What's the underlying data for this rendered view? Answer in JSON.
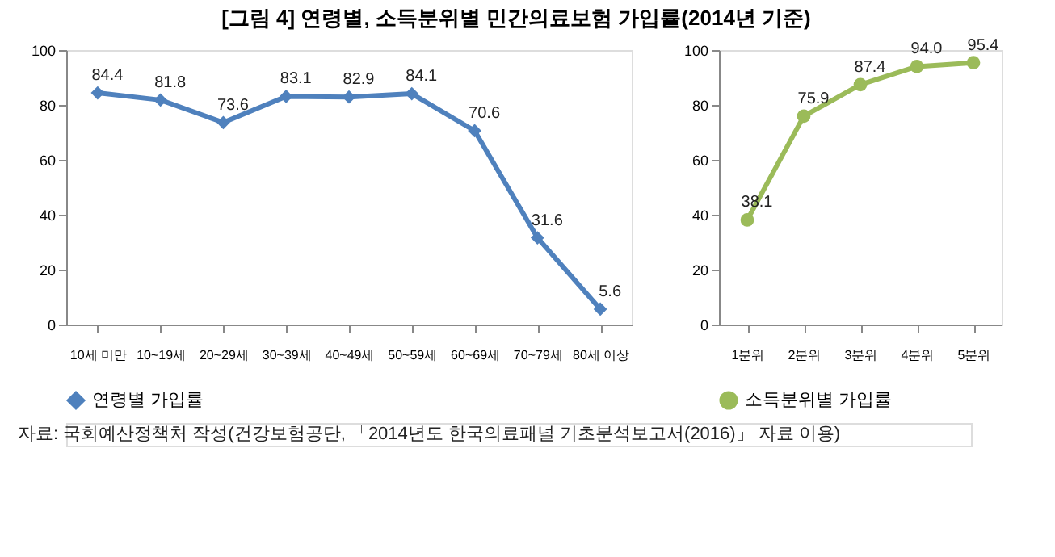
{
  "chart_data": [
    {
      "type": "line",
      "title": "[그림 4] 연령별, 소득분위별 민간의료보험 가입률(2014년 기준)",
      "annotations": [
        "자료: 국회예산정책처 작성(건강보험공단, 「2014년도 한국의료패널 기초분석보고서(2016)」 자료 이용)"
      ],
      "categories": [
        "10세 미만",
        "10~19세",
        "20~29세",
        "30~39세",
        "40~49세",
        "50~59세",
        "60~69세",
        "70~79세",
        "80세 이상"
      ],
      "series": [
        {
          "name": "연령별 가입률",
          "color": "#4f81bd",
          "values": [
            84.4,
            81.8,
            73.6,
            83.1,
            82.9,
            84.1,
            70.6,
            31.6,
            5.6
          ]
        }
      ],
      "ylim": [
        0,
        100
      ],
      "yticks": [
        0,
        20,
        40,
        60,
        80,
        100
      ],
      "marker": "diamond",
      "data_labels": true,
      "legend": "bottom",
      "grid": false
    },
    {
      "type": "line",
      "categories": [
        "1분위",
        "2분위",
        "3분위",
        "4분위",
        "5분위"
      ],
      "series": [
        {
          "name": "소득분위별 가입률",
          "color": "#9bbb59",
          "values": [
            38.1,
            75.9,
            87.4,
            94.0,
            95.4
          ]
        }
      ],
      "value_labels": [
        "38.1",
        "75.9",
        "87.4",
        "94.0",
        "95.4"
      ],
      "ylim": [
        0,
        100
      ],
      "yticks": [
        0,
        20,
        40,
        60,
        80,
        100
      ],
      "marker": "circle",
      "legend": "bottom",
      "grid": false
    }
  ]
}
